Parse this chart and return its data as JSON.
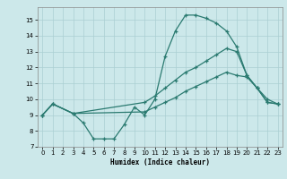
{
  "xlabel": "Humidex (Indice chaleur)",
  "xlim": [
    -0.5,
    23.5
  ],
  "ylim": [
    7,
    15.8
  ],
  "yticks": [
    7,
    8,
    9,
    10,
    11,
    12,
    13,
    14,
    15
  ],
  "xticks": [
    0,
    1,
    2,
    3,
    4,
    5,
    6,
    7,
    8,
    9,
    10,
    11,
    12,
    13,
    14,
    15,
    16,
    17,
    18,
    19,
    20,
    21,
    22,
    23
  ],
  "bg_color": "#cce8ea",
  "grid_color": "#aacfd2",
  "line_color": "#2a7a70",
  "curve1_x": [
    0,
    1,
    3,
    4,
    5,
    6,
    7,
    8,
    9,
    10,
    11,
    12,
    13,
    14,
    15,
    16,
    17,
    18,
    19,
    20,
    21,
    22,
    23
  ],
  "curve1_y": [
    9.0,
    9.7,
    9.1,
    8.5,
    7.5,
    7.5,
    7.5,
    8.4,
    9.5,
    9.0,
    10.0,
    12.7,
    14.3,
    15.3,
    15.3,
    15.1,
    14.8,
    14.3,
    13.3,
    11.5,
    10.7,
    10.0,
    9.7
  ],
  "curve2_x": [
    0,
    1,
    3,
    10,
    11,
    12,
    13,
    14,
    15,
    16,
    17,
    18,
    19,
    20,
    21,
    22,
    23
  ],
  "curve2_y": [
    9.0,
    9.7,
    9.1,
    9.8,
    10.2,
    10.7,
    11.2,
    11.7,
    12.0,
    12.4,
    12.8,
    13.2,
    13.0,
    11.5,
    10.7,
    9.8,
    9.7
  ],
  "curve3_x": [
    0,
    1,
    3,
    10,
    11,
    12,
    13,
    14,
    15,
    16,
    17,
    18,
    19,
    20,
    21,
    22,
    23
  ],
  "curve3_y": [
    9.0,
    9.7,
    9.1,
    9.2,
    9.5,
    9.8,
    10.1,
    10.5,
    10.8,
    11.1,
    11.4,
    11.7,
    11.5,
    11.4,
    10.7,
    9.8,
    9.7
  ]
}
